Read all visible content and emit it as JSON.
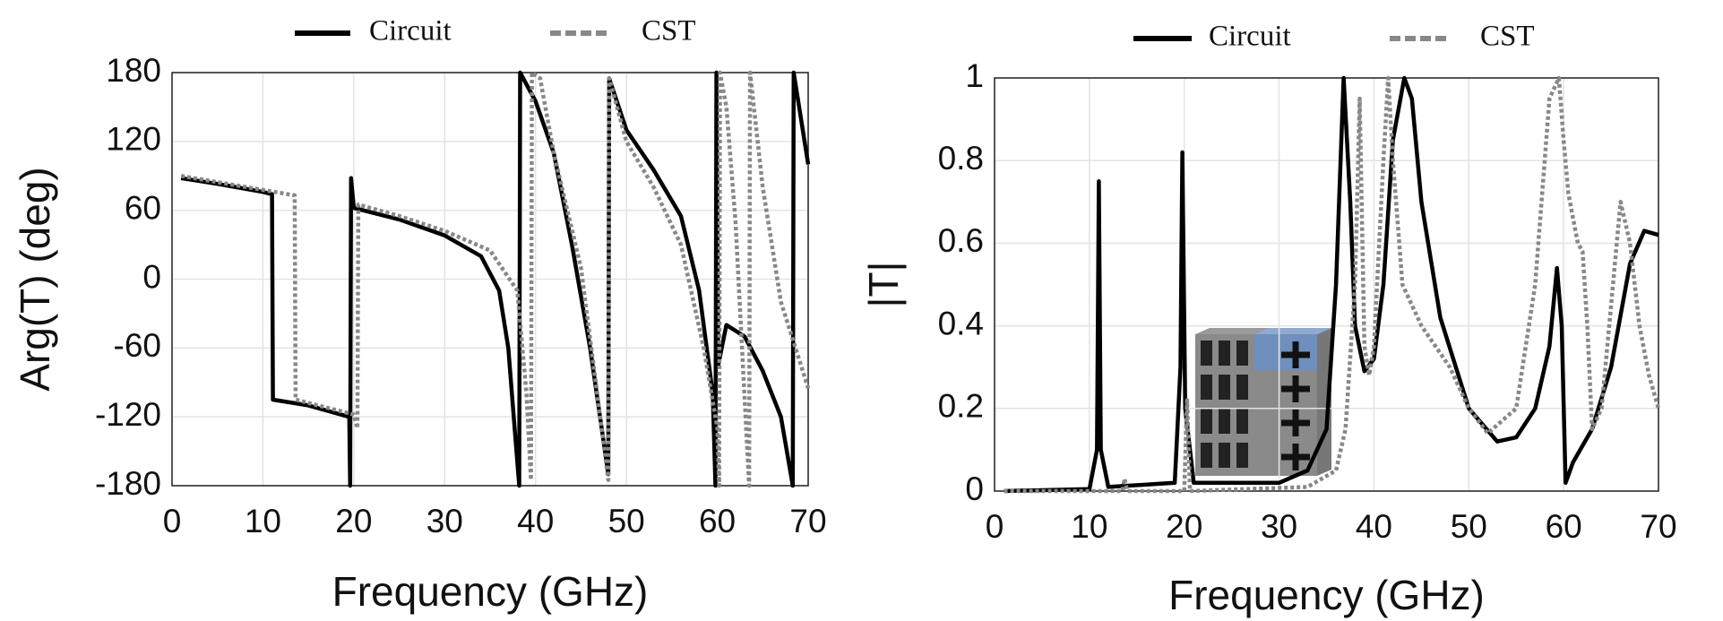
{
  "chart_data": [
    {
      "type": "line",
      "ylabel": "Arg(T) (deg)",
      "xlabel": "Frequency (GHz)",
      "xlim": [
        0,
        70
      ],
      "ylim": [
        -180,
        180
      ],
      "xticks": [
        0,
        10,
        20,
        30,
        40,
        50,
        60,
        70
      ],
      "yticks": [
        -180,
        -120,
        -60,
        0,
        60,
        120,
        180
      ],
      "grid": true,
      "series": [
        {
          "name": "Circuit",
          "color": "#000000",
          "dash": "solid",
          "x": [
            1,
            5,
            10,
            11,
            11.1,
            15,
            19.5,
            19.6,
            19.7,
            20,
            25,
            30,
            34,
            36,
            37,
            37.8,
            38.2,
            38.3,
            40,
            42,
            44,
            46,
            48,
            48.1,
            50,
            53,
            56,
            58,
            59.5,
            59.8,
            59.9,
            60.1,
            61,
            63,
            65,
            67,
            68.3,
            68.4,
            69,
            70
          ],
          "values": [
            88,
            83,
            76,
            74,
            -105,
            -110,
            -120,
            -180,
            88,
            62,
            52,
            38,
            20,
            -10,
            -60,
            -140,
            -180,
            180,
            155,
            110,
            30,
            -60,
            -170,
            175,
            130,
            95,
            55,
            -10,
            -100,
            -180,
            180,
            -75,
            -40,
            -50,
            -80,
            -120,
            -180,
            180,
            150,
            100
          ]
        },
        {
          "name": "CST",
          "color": "#888888",
          "dash": "dotted",
          "x": [
            1,
            13.5,
            13.6,
            20,
            20.4,
            20.5,
            25,
            30,
            35,
            38,
            39,
            39.5,
            39.6,
            40.5,
            42,
            45,
            48,
            48.1,
            50,
            53,
            56,
            58.5,
            60,
            60.2,
            60.3,
            61,
            62,
            63.5,
            63.6,
            65,
            67,
            69,
            70
          ],
          "values": [
            90,
            73,
            -105,
            -118,
            -130,
            65,
            55,
            42,
            25,
            -10,
            -100,
            -175,
            180,
            175,
            110,
            10,
            -175,
            175,
            120,
            80,
            30,
            -60,
            -130,
            -180,
            180,
            150,
            50,
            -180,
            180,
            80,
            -20,
            -70,
            -95
          ]
        }
      ]
    },
    {
      "type": "line",
      "ylabel": "|T|",
      "xlabel": "Frequency (GHz)",
      "xlim": [
        0,
        70
      ],
      "ylim": [
        0,
        1
      ],
      "xticks": [
        0,
        10,
        20,
        30,
        40,
        50,
        60,
        70
      ],
      "yticks": [
        0,
        0.2,
        0.4,
        0.6,
        0.8,
        1
      ],
      "grid": true,
      "series": [
        {
          "name": "Circuit",
          "color": "#000000",
          "dash": "solid",
          "x": [
            1,
            10,
            10.8,
            11,
            11.2,
            12,
            19,
            19.6,
            19.8,
            20.1,
            21,
            30,
            33,
            35,
            36,
            36.8,
            37.5,
            38,
            39,
            40,
            41,
            42,
            43.2,
            44,
            45,
            47,
            50,
            53,
            55,
            57,
            58.5,
            59.3,
            59.8,
            60.2,
            61,
            63,
            65,
            67,
            68.5,
            70
          ],
          "values": [
            0,
            0.005,
            0.1,
            0.75,
            0.1,
            0.01,
            0.02,
            0.3,
            0.82,
            0.2,
            0.02,
            0.02,
            0.05,
            0.15,
            0.5,
            1,
            0.7,
            0.4,
            0.29,
            0.32,
            0.5,
            0.85,
            1,
            0.95,
            0.7,
            0.42,
            0.2,
            0.12,
            0.13,
            0.2,
            0.35,
            0.54,
            0.4,
            0.02,
            0.07,
            0.15,
            0.3,
            0.55,
            0.63,
            0.62
          ]
        },
        {
          "name": "CST",
          "color": "#888888",
          "dash": "dotted",
          "x": [
            1,
            13.5,
            13.7,
            14,
            20,
            20.3,
            20.6,
            33,
            36,
            37,
            38,
            38.5,
            39,
            39.5,
            40,
            41,
            41.5,
            42,
            43,
            45,
            48,
            50,
            52,
            55,
            57,
            58.5,
            59.5,
            60,
            60.5,
            61.5,
            62,
            62.5,
            63,
            64,
            65,
            66,
            67,
            68,
            69,
            70
          ],
          "values": [
            0,
            0,
            0.03,
            0,
            0,
            0.22,
            0,
            0.01,
            0.05,
            0.15,
            0.5,
            0.95,
            0.35,
            0.28,
            0.35,
            0.8,
            1,
            0.8,
            0.5,
            0.4,
            0.3,
            0.2,
            0.14,
            0.2,
            0.5,
            0.95,
            1,
            0.85,
            0.72,
            0.6,
            0.58,
            0.4,
            0.15,
            0.2,
            0.45,
            0.7,
            0.6,
            0.4,
            0.28,
            0.2
          ]
        }
      ]
    }
  ]
}
